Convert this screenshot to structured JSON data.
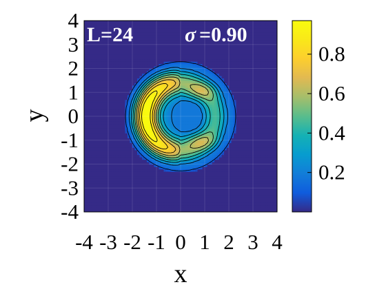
{
  "chart_data": {
    "type": "heatmap",
    "title": "",
    "xlabel": "x",
    "ylabel": "y",
    "xlim": [
      -4,
      4
    ],
    "ylim": [
      -4,
      4
    ],
    "x_ticks": [
      "-4",
      "-3",
      "-2",
      "-1",
      "0",
      "1",
      "2",
      "3",
      "4"
    ],
    "y_ticks": [
      "-4",
      "-3",
      "-2",
      "-1",
      "0",
      "1",
      "2",
      "3",
      "4"
    ],
    "grid": true,
    "colormap": "parula",
    "colorbar": {
      "range": [
        0.0,
        0.97
      ],
      "ticks": [
        "0.2",
        "0.4",
        "0.6",
        "0.8"
      ],
      "tick_values": [
        0.2,
        0.4,
        0.6,
        0.8
      ]
    },
    "annotations": {
      "left": "L=24",
      "right_symbol": "σ",
      "right_value": "=0.90"
    },
    "density_model": {
      "description": "radial cutoff near r=2.35 with a crescent of high density on the left side and a low-density core near (0.3, 0)",
      "r_edge": 2.35,
      "ring_radius": 1.45,
      "ring_width": 0.55,
      "peak_value": 0.97,
      "core_center": [
        0.35,
        0.0
      ],
      "core_value": 0.45
    },
    "contour_levels": [
      0.1,
      0.2,
      0.3,
      0.4,
      0.5,
      0.6,
      0.7,
      0.8,
      0.9
    ]
  },
  "colors": {
    "background": "#ffffff",
    "outside": "#352a87",
    "contour": "#000000",
    "annotation": "#ffffff"
  }
}
